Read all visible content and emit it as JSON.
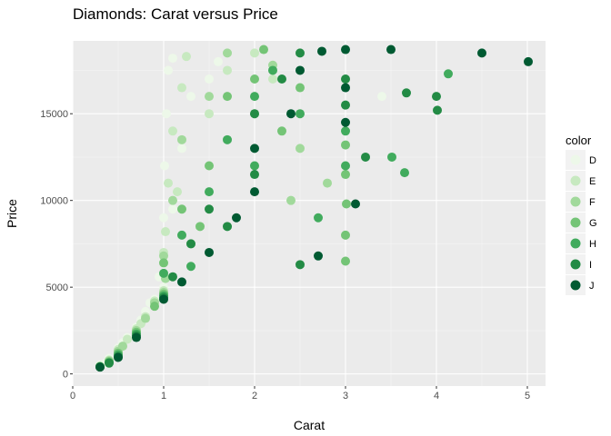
{
  "chart_data": {
    "type": "scatter",
    "title": "Diamonds: Carat versus Price",
    "xlabel": "Carat",
    "ylabel": "Price",
    "xlim": [
      0,
      5.2
    ],
    "ylim": [
      -700,
      19200
    ],
    "xticks": [
      0,
      1,
      2,
      3,
      4,
      5
    ],
    "yticks": [
      0,
      5000,
      10000,
      15000
    ],
    "grid": true,
    "legend_title": "color",
    "legend_position": "right",
    "series": [
      {
        "name": "D",
        "color": "#edf8e9",
        "points": [
          [
            0.3,
            500
          ],
          [
            0.35,
            600
          ],
          [
            0.4,
            900
          ],
          [
            0.5,
            1500
          ],
          [
            0.55,
            1800
          ],
          [
            0.6,
            2100
          ],
          [
            0.7,
            2700
          ],
          [
            0.75,
            3100
          ],
          [
            0.8,
            3600
          ],
          [
            0.9,
            4300
          ],
          [
            1.0,
            5000
          ],
          [
            1.0,
            6500
          ],
          [
            1.0,
            9000
          ],
          [
            1.01,
            12000
          ],
          [
            1.03,
            15000
          ],
          [
            1.05,
            17500
          ],
          [
            1.1,
            18200
          ],
          [
            1.1,
            9500
          ],
          [
            1.2,
            13000
          ],
          [
            1.3,
            16000
          ],
          [
            1.5,
            17000
          ],
          [
            1.6,
            18000
          ],
          [
            0.95,
            5600
          ],
          [
            0.85,
            4100
          ],
          [
            3.4,
            16000
          ]
        ]
      },
      {
        "name": "E",
        "color": "#c7e9c0",
        "points": [
          [
            0.3,
            450
          ],
          [
            0.4,
            800
          ],
          [
            0.5,
            1400
          ],
          [
            0.6,
            2000
          ],
          [
            0.7,
            2600
          ],
          [
            0.8,
            3300
          ],
          [
            0.9,
            4200
          ],
          [
            1.0,
            4800
          ],
          [
            1.0,
            7000
          ],
          [
            1.05,
            11000
          ],
          [
            1.1,
            14000
          ],
          [
            1.2,
            16500
          ],
          [
            1.25,
            18300
          ],
          [
            1.5,
            15000
          ],
          [
            1.7,
            17500
          ],
          [
            2.0,
            18500
          ],
          [
            2.2,
            17000
          ],
          [
            1.02,
            8200
          ],
          [
            0.75,
            2900
          ],
          [
            1.15,
            10500
          ]
        ]
      },
      {
        "name": "F",
        "color": "#a1d99b",
        "points": [
          [
            0.3,
            430
          ],
          [
            0.4,
            750
          ],
          [
            0.5,
            1300
          ],
          [
            0.7,
            2500
          ],
          [
            0.8,
            3200
          ],
          [
            0.9,
            4100
          ],
          [
            1.0,
            4700
          ],
          [
            1.0,
            6800
          ],
          [
            1.1,
            10000
          ],
          [
            1.2,
            13500
          ],
          [
            1.5,
            16000
          ],
          [
            1.7,
            18500
          ],
          [
            2.0,
            15000
          ],
          [
            2.2,
            17800
          ],
          [
            2.4,
            10000
          ],
          [
            2.8,
            11000
          ],
          [
            1.3,
            7500
          ],
          [
            1.02,
            5500
          ],
          [
            0.55,
            1600
          ],
          [
            2.5,
            13000
          ]
        ]
      },
      {
        "name": "G",
        "color": "#74c476",
        "points": [
          [
            0.3,
            420
          ],
          [
            0.4,
            700
          ],
          [
            0.5,
            1200
          ],
          [
            0.7,
            2400
          ],
          [
            0.9,
            3900
          ],
          [
            1.0,
            4600
          ],
          [
            1.0,
            6400
          ],
          [
            1.2,
            9500
          ],
          [
            1.5,
            12000
          ],
          [
            1.7,
            16000
          ],
          [
            2.0,
            17000
          ],
          [
            2.1,
            18700
          ],
          [
            2.3,
            14000
          ],
          [
            2.5,
            16500
          ],
          [
            3.0,
            13200
          ],
          [
            3.0,
            8000
          ],
          [
            3.01,
            9800
          ],
          [
            3.0,
            11500
          ],
          [
            3.0,
            6500
          ],
          [
            1.4,
            8500
          ]
        ]
      },
      {
        "name": "H",
        "color": "#41ab5d",
        "points": [
          [
            0.3,
            410
          ],
          [
            0.4,
            650
          ],
          [
            0.5,
            1100
          ],
          [
            0.7,
            2300
          ],
          [
            1.0,
            4500
          ],
          [
            1.0,
            5800
          ],
          [
            1.2,
            8000
          ],
          [
            1.5,
            10500
          ],
          [
            1.7,
            13500
          ],
          [
            2.0,
            16000
          ],
          [
            2.2,
            17500
          ],
          [
            2.5,
            15000
          ],
          [
            3.0,
            14000
          ],
          [
            3.0,
            12000
          ],
          [
            3.51,
            12500
          ],
          [
            3.65,
            11600
          ],
          [
            4.13,
            17300
          ],
          [
            2.7,
            9000
          ],
          [
            1.3,
            6200
          ],
          [
            2.0,
            12000
          ]
        ]
      },
      {
        "name": "I",
        "color": "#238b45",
        "points": [
          [
            0.3,
            400
          ],
          [
            0.4,
            620
          ],
          [
            0.5,
            1000
          ],
          [
            0.7,
            2200
          ],
          [
            1.0,
            4400
          ],
          [
            1.1,
            5600
          ],
          [
            1.3,
            7500
          ],
          [
            1.5,
            9500
          ],
          [
            2.0,
            11500
          ],
          [
            2.0,
            15000
          ],
          [
            2.3,
            17000
          ],
          [
            2.5,
            18500
          ],
          [
            3.0,
            15500
          ],
          [
            3.0,
            17000
          ],
          [
            3.22,
            12500
          ],
          [
            3.67,
            16200
          ],
          [
            4.0,
            16000
          ],
          [
            4.01,
            15200
          ],
          [
            1.7,
            8500
          ],
          [
            2.5,
            6300
          ]
        ]
      },
      {
        "name": "J",
        "color": "#005a32",
        "points": [
          [
            0.3,
            390
          ],
          [
            0.5,
            950
          ],
          [
            0.7,
            2100
          ],
          [
            1.0,
            4300
          ],
          [
            1.2,
            5300
          ],
          [
            1.5,
            7000
          ],
          [
            1.8,
            9000
          ],
          [
            2.0,
            10500
          ],
          [
            2.0,
            13000
          ],
          [
            2.4,
            15000
          ],
          [
            2.5,
            17500
          ],
          [
            2.7,
            6800
          ],
          [
            2.74,
            18600
          ],
          [
            3.0,
            18700
          ],
          [
            3.0,
            16500
          ],
          [
            3.0,
            14500
          ],
          [
            3.11,
            9800
          ],
          [
            3.5,
            18700
          ],
          [
            4.5,
            18500
          ],
          [
            5.01,
            18000
          ]
        ]
      }
    ]
  }
}
